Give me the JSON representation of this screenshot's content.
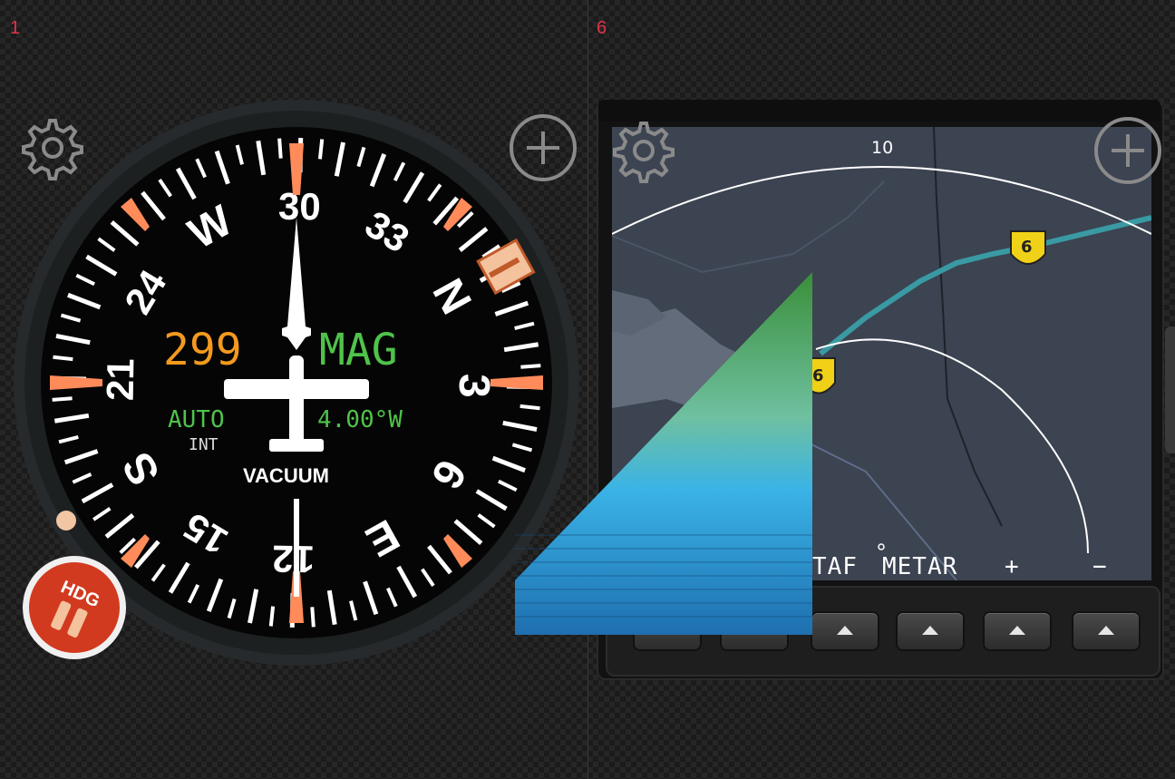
{
  "panels": [
    {
      "number": "1"
    },
    {
      "number": "6"
    }
  ],
  "instrument": {
    "heading_value": "299",
    "heading_ref": "MAG",
    "mode": "AUTO",
    "mode_sub": "INT",
    "variation": "4.00°W",
    "source": "VACUUM",
    "compass_labels": [
      "N",
      "3",
      "6",
      "E",
      "12",
      "15",
      "S",
      "21",
      "24",
      "W",
      "30",
      "33"
    ],
    "hdg_button_label": "HDG",
    "colors": {
      "heading": "#f39a1e",
      "mag": "#4fc34a",
      "needle": "#ff7a4a"
    }
  },
  "mfd": {
    "range_label": "10",
    "highway_shield_1": "6",
    "highway_shield_2": "6",
    "softkeys": [
      "TAF",
      "METAR",
      "+",
      "−"
    ]
  },
  "icons": {
    "settings": "gear-icon",
    "add": "plus-circle-icon"
  }
}
